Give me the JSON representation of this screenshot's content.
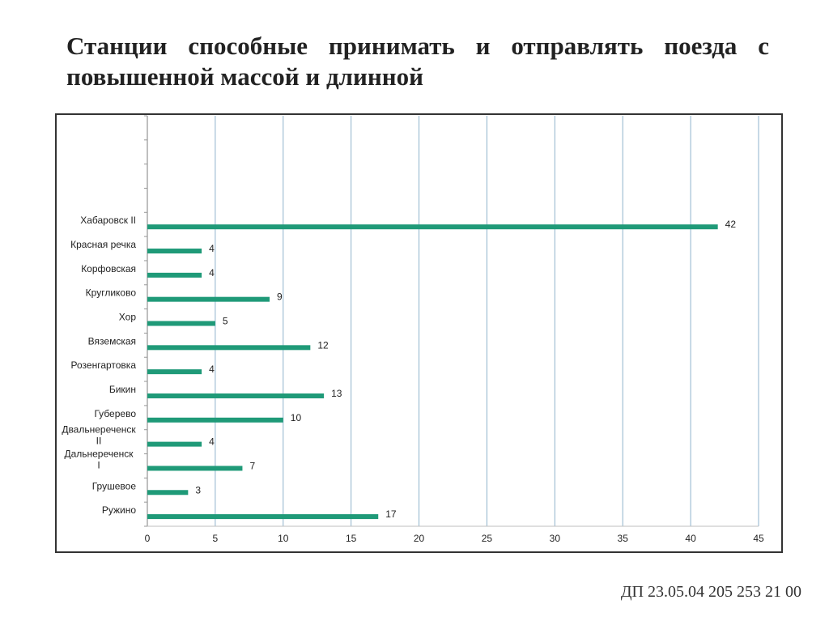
{
  "title": "Станции способные принимать и отправлять поезда с повышенной массой и длинной",
  "footer": "ДП 23.05.04 205 253 21 00",
  "chart_data": {
    "type": "bar",
    "orientation": "horizontal",
    "categories": [
      "",
      "",
      "",
      "",
      "Хабаровск II",
      "Красная речка",
      "Корфовская",
      "Кругликово",
      "Хор",
      "Вяземская",
      "Розенгартовка",
      "Бикин",
      "Губерево",
      "Двальнереченск II",
      "Дальнереченск I",
      "Грушевое",
      "Ружино"
    ],
    "values": [
      null,
      null,
      null,
      null,
      42,
      4,
      4,
      9,
      5,
      12,
      4,
      13,
      10,
      4,
      7,
      3,
      17
    ],
    "xlim": [
      0,
      45
    ],
    "xticks": [
      0,
      5,
      10,
      15,
      20,
      25,
      30,
      35,
      40,
      45
    ],
    "grid": "vertical",
    "data_labels": true,
    "legend": "none",
    "colors": {
      "bar": "#1f9a78",
      "grid": "#8fb3cc",
      "axis": "#bfbfbf"
    }
  }
}
